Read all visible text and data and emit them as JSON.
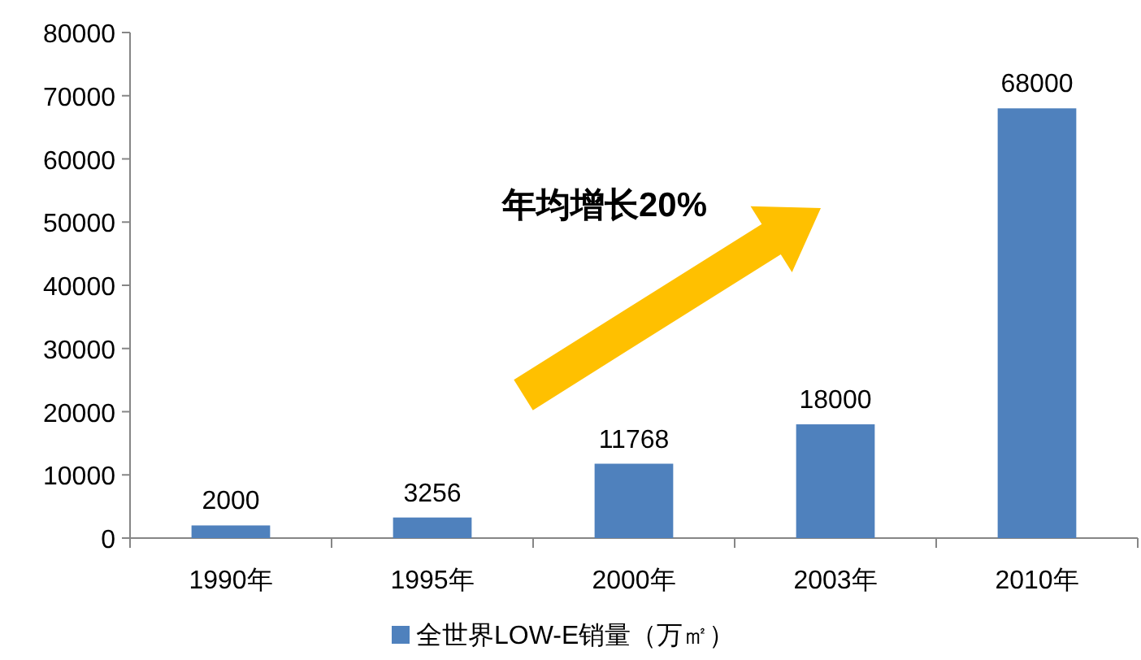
{
  "chart_data": {
    "type": "bar",
    "categories": [
      "1990年",
      "1995年",
      "2000年",
      "2003年",
      "2010年"
    ],
    "series": [
      {
        "name": "全世界LOW-E销量（万㎡）",
        "color": "#4f81bd",
        "values": [
          2000,
          3256,
          11768,
          18000,
          68000
        ]
      }
    ],
    "ylim": [
      0,
      80000
    ],
    "yticks": [
      0,
      10000,
      20000,
      30000,
      40000,
      50000,
      60000,
      70000,
      80000
    ],
    "data_labels": true,
    "legend": "bottom",
    "grid": false,
    "annotations": [
      "年均增长20%"
    ]
  }
}
